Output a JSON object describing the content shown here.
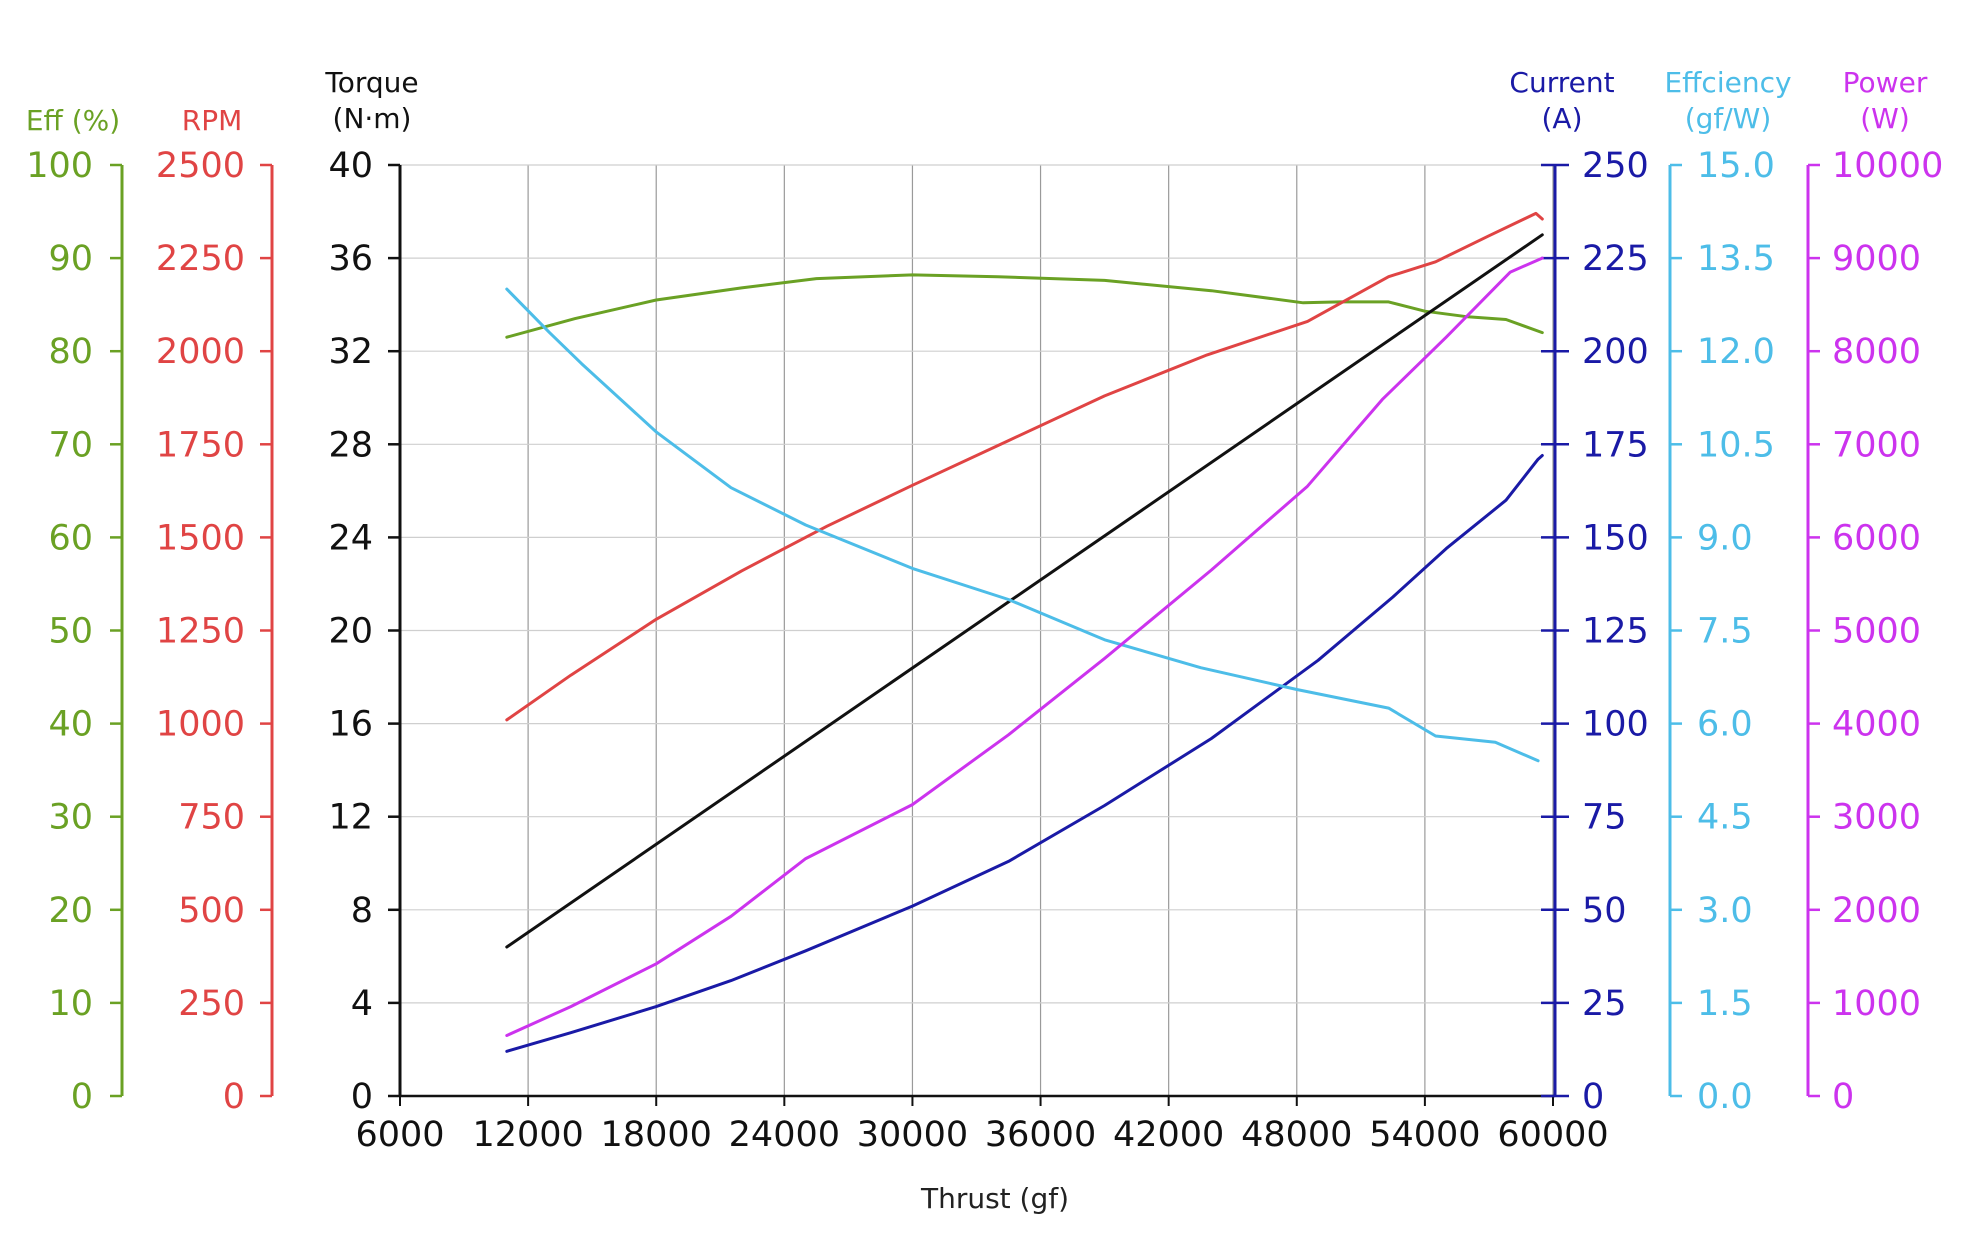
{
  "chart_data": {
    "type": "line",
    "xlabel": "Thrust (gf)",
    "x_ticks": [
      "6000",
      "12000",
      "18000",
      "24000",
      "30000",
      "36000",
      "42000",
      "48000",
      "54000",
      "60000"
    ],
    "xlim": [
      6000,
      60000
    ],
    "grid": true,
    "axes": [
      {
        "id": "eff",
        "side": "left",
        "color": "#6aa124",
        "title_lines": [
          "Eff (%)"
        ],
        "range": [
          0,
          100
        ],
        "ticks": [
          "0",
          "10",
          "20",
          "30",
          "40",
          "50",
          "60",
          "70",
          "80",
          "90",
          "100"
        ]
      },
      {
        "id": "rpm",
        "side": "left",
        "color": "#e04444",
        "title_lines": [
          "RPM"
        ],
        "range": [
          0,
          2500
        ],
        "ticks": [
          "0",
          "250",
          "500",
          "750",
          "1000",
          "1250",
          "1500",
          "1750",
          "2000",
          "2250",
          "2500"
        ]
      },
      {
        "id": "torque",
        "side": "left",
        "color": "#111111",
        "title_lines": [
          "Torque",
          "(N·m)"
        ],
        "range": [
          0,
          40
        ],
        "ticks": [
          "0",
          "4",
          "8",
          "12",
          "16",
          "20",
          "24",
          "28",
          "32",
          "36",
          "40"
        ]
      },
      {
        "id": "current",
        "side": "right",
        "color": "#1a1aa6",
        "title_lines": [
          "Current",
          "(A)"
        ],
        "range": [
          0,
          250
        ],
        "ticks": [
          "0",
          "25",
          "50",
          "75",
          "100",
          "125",
          "150",
          "175",
          "200",
          "225",
          "250"
        ]
      },
      {
        "id": "efficiency",
        "side": "right",
        "color": "#4dbde8",
        "title_lines": [
          "Effciency",
          "(gf/W)"
        ],
        "range": [
          0,
          15
        ],
        "ticks": [
          "0.0",
          "1.5",
          "3.0",
          "4.5",
          "6.0",
          "7.5",
          "9.0",
          "10.5",
          "12.0",
          "13.5",
          "15.0"
        ]
      },
      {
        "id": "power",
        "side": "right",
        "color": "#cc33ee",
        "title_lines": [
          "Power",
          "(W)"
        ],
        "range": [
          0,
          10000
        ],
        "ticks": [
          "0",
          "1000",
          "2000",
          "3000",
          "4000",
          "5000",
          "6000",
          "7000",
          "8000",
          "9000",
          "10000"
        ]
      }
    ],
    "series": [
      {
        "axis": "eff",
        "color": "#6aa124",
        "x": [
          11000,
          14200,
          18000,
          22000,
          25500,
          30000,
          34000,
          39000,
          44000,
          48300,
          50000,
          52300,
          54000,
          56000,
          57800,
          59500
        ],
        "y": [
          81.5,
          83.5,
          85.5,
          86.8,
          87.8,
          88.2,
          88.0,
          87.6,
          86.5,
          85.2,
          85.3,
          85.3,
          84.3,
          83.7,
          83.4,
          82.0
        ]
      },
      {
        "axis": "rpm",
        "color": "#e04444",
        "x": [
          11000,
          14000,
          18000,
          22000,
          26000,
          30000,
          34500,
          39000,
          43800,
          48500,
          52300,
          54500,
          57000,
          59200,
          59500
        ],
        "y": [
          1010,
          1130,
          1280,
          1410,
          1530,
          1640,
          1760,
          1880,
          1990,
          2080,
          2200,
          2240,
          2310,
          2370,
          2355
        ]
      },
      {
        "axis": "torque",
        "color": "#111111",
        "x": [
          11000,
          59500
        ],
        "y": [
          6.4,
          37.0
        ]
      },
      {
        "axis": "current",
        "color": "#1a1aa6",
        "x": [
          11000,
          14000,
          18000,
          21500,
          25000,
          30000,
          34500,
          39000,
          44000,
          49000,
          52500,
          55000,
          57800,
          59300,
          59500
        ],
        "y": [
          12,
          17,
          24,
          31,
          39,
          51,
          63,
          78,
          96,
          117,
          134,
          147,
          160,
          171,
          172
        ]
      },
      {
        "axis": "efficiency",
        "color": "#4dbde8",
        "x": [
          11000,
          13000,
          14500,
          18000,
          21500,
          25000,
          30000,
          34500,
          39000,
          43500,
          48000,
          52300,
          54500,
          57300,
          59300
        ],
        "y": [
          13.0,
          12.3,
          11.8,
          10.7,
          9.8,
          9.2,
          8.5,
          8.0,
          7.35,
          6.9,
          6.55,
          6.25,
          5.8,
          5.7,
          5.4
        ]
      },
      {
        "axis": "power",
        "color": "#cc33ee",
        "x": [
          11000,
          14000,
          18000,
          21500,
          25000,
          30000,
          34500,
          39000,
          44000,
          48500,
          52000,
          55000,
          58000,
          59500
        ],
        "y": [
          650,
          960,
          1420,
          1930,
          2550,
          3130,
          3880,
          4700,
          5650,
          6550,
          7480,
          8150,
          8850,
          9000
        ]
      }
    ]
  }
}
